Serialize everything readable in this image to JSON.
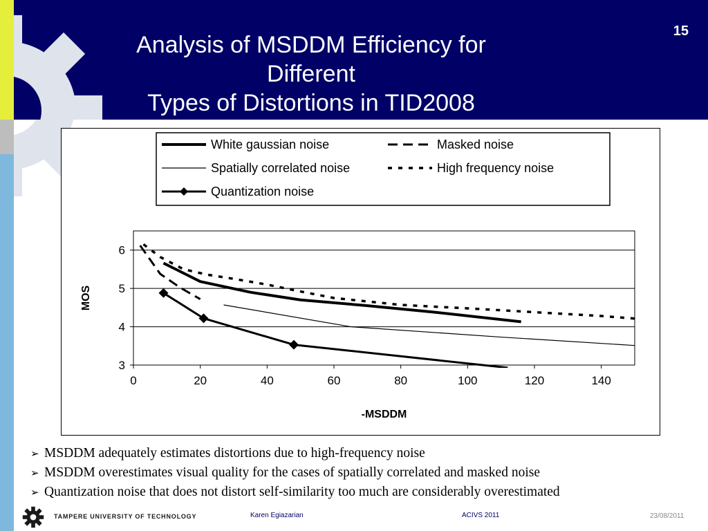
{
  "slide": {
    "title_line1": "Analysis of MSDDM Efficiency for Different",
    "title_line2": "Types of Distortions in TID2008",
    "number": "15"
  },
  "colors": {
    "header_bg": "#000066",
    "side_yellow": "#e6ee3c",
    "side_blue": "#7fb8dd",
    "gear": "#dfe4ec"
  },
  "chart_data": {
    "type": "line",
    "xlabel": "-MSDDM",
    "ylabel": "MOS",
    "xlim": [
      0,
      150
    ],
    "ylim": [
      3,
      6.5
    ],
    "xticks": [
      0,
      20,
      40,
      60,
      80,
      100,
      120,
      140
    ],
    "yticks": [
      3,
      4,
      5,
      6
    ],
    "grid": "horizontal",
    "legend_position": "top, above plot",
    "series": [
      {
        "name": "White gaussian noise",
        "style": "thick-solid",
        "x": [
          9,
          20,
          35,
          50,
          70,
          90,
          116
        ],
        "y": [
          5.66,
          5.18,
          4.9,
          4.7,
          4.55,
          4.38,
          4.13
        ]
      },
      {
        "name": "Masked noise",
        "style": "long-dash",
        "x": [
          2,
          8,
          14,
          20
        ],
        "y": [
          6.12,
          5.38,
          5.02,
          4.72
        ]
      },
      {
        "name": "Spatially correlated noise",
        "style": "thin-solid",
        "x": [
          27,
          65,
          110,
          152
        ],
        "y": [
          4.57,
          4.0,
          3.73,
          3.5
        ]
      },
      {
        "name": "High frequency noise",
        "style": "short-dash",
        "x": [
          3,
          8,
          15,
          22,
          30,
          40,
          50,
          60,
          80,
          100,
          120,
          140,
          152
        ],
        "y": [
          6.15,
          5.82,
          5.5,
          5.36,
          5.25,
          5.1,
          4.92,
          4.75,
          4.57,
          4.48,
          4.38,
          4.28,
          4.2
        ]
      },
      {
        "name": "Quantization noise",
        "style": "solid-diamond",
        "x": [
          9,
          21,
          48,
          112
        ],
        "y": [
          4.88,
          4.22,
          3.53,
          2.93
        ],
        "markers": [
          true,
          true,
          true,
          false
        ]
      }
    ]
  },
  "bullets": [
    "MSDDM adequately estimates distortions due to high-frequency noise",
    "MSDDM overestimates visual quality for the cases of spatially correlated and masked noise",
    "Quantization noise that does not distort self-similarity too much are considerably overestimated"
  ],
  "footer": {
    "university": "TAMPERE UNIVERSITY OF TECHNOLOGY",
    "author": "Karen Egiazarian",
    "conference": "ACIVS 2011",
    "date": "23/08/2011"
  }
}
